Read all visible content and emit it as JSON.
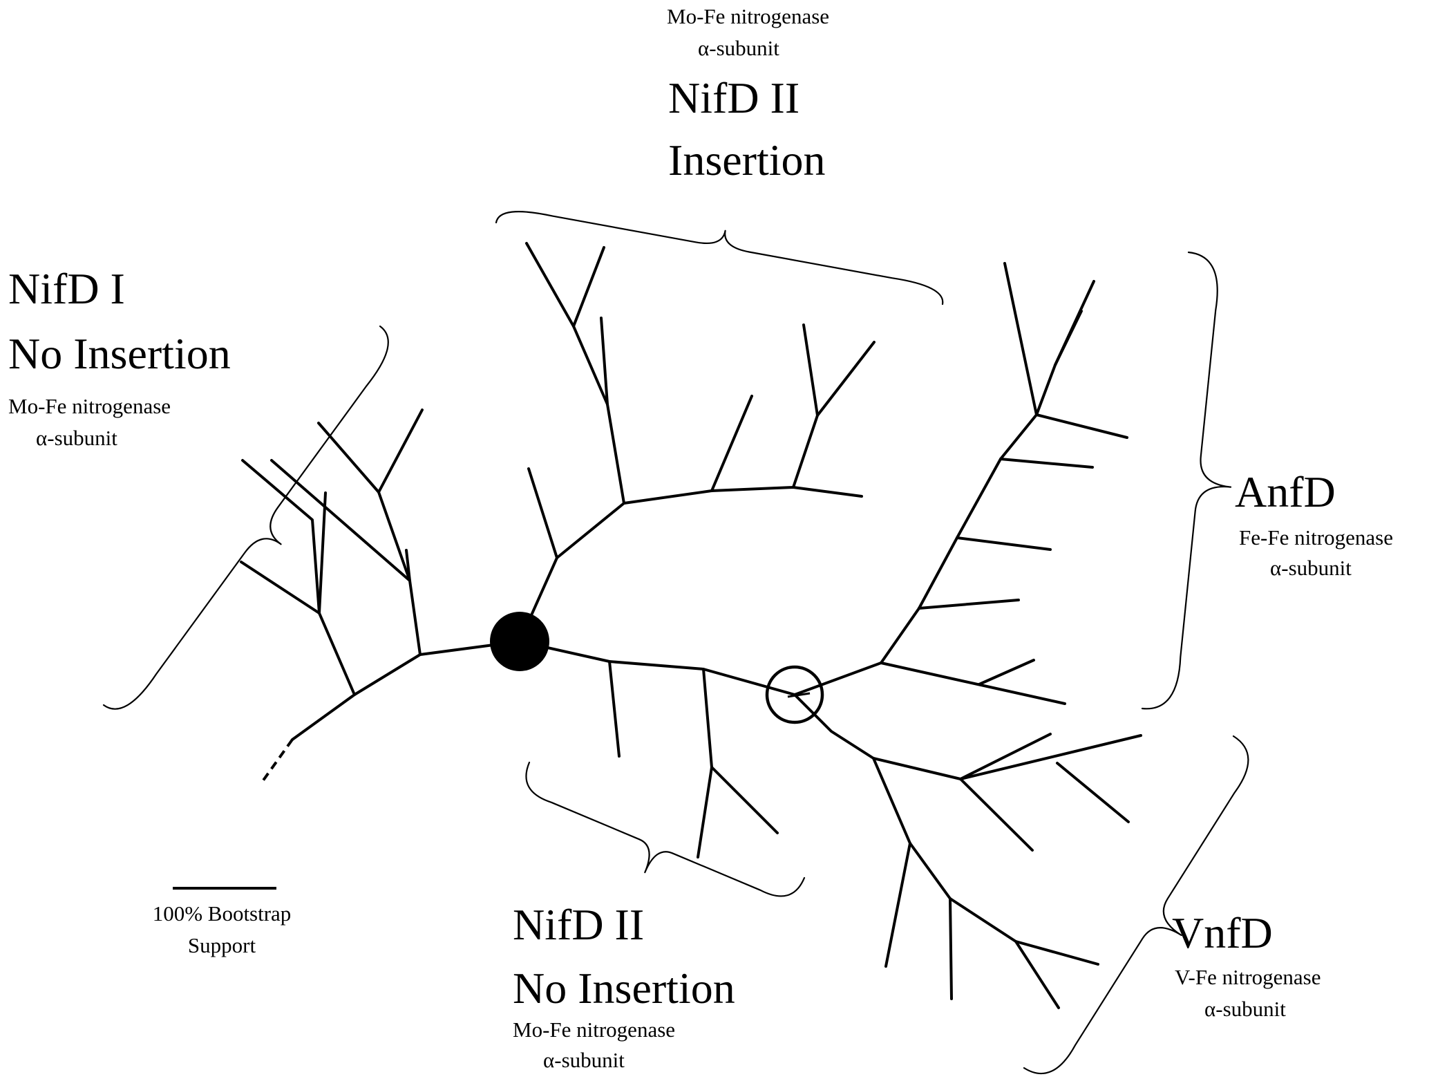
{
  "groups": {
    "nifd1": {
      "title": "NifD I",
      "subtitle": "No Insertion",
      "desc1": "Mo-Fe nitrogenase",
      "desc2": "α-subunit"
    },
    "nifd2_ins": {
      "desc1": "Mo-Fe nitrogenase",
      "desc2": "α-subunit",
      "title": "NifD II",
      "subtitle": "Insertion"
    },
    "anfd": {
      "title": "AnfD",
      "desc1": "Fe-Fe nitrogenase",
      "desc2": "α-subunit"
    },
    "nifd2_noins": {
      "title": "NifD II",
      "subtitle": "No Insertion",
      "desc1": "Mo-Fe nitrogenase",
      "desc2": "α-subunit"
    },
    "vnfd": {
      "title": "VnfD",
      "desc1": "V-Fe nitrogenase",
      "desc2": "α-subunit"
    }
  },
  "scale_bar": {
    "label1": "100% Bootstrap",
    "label2": "Support"
  },
  "colors": {
    "line": "#000000",
    "background": "#ffffff"
  }
}
